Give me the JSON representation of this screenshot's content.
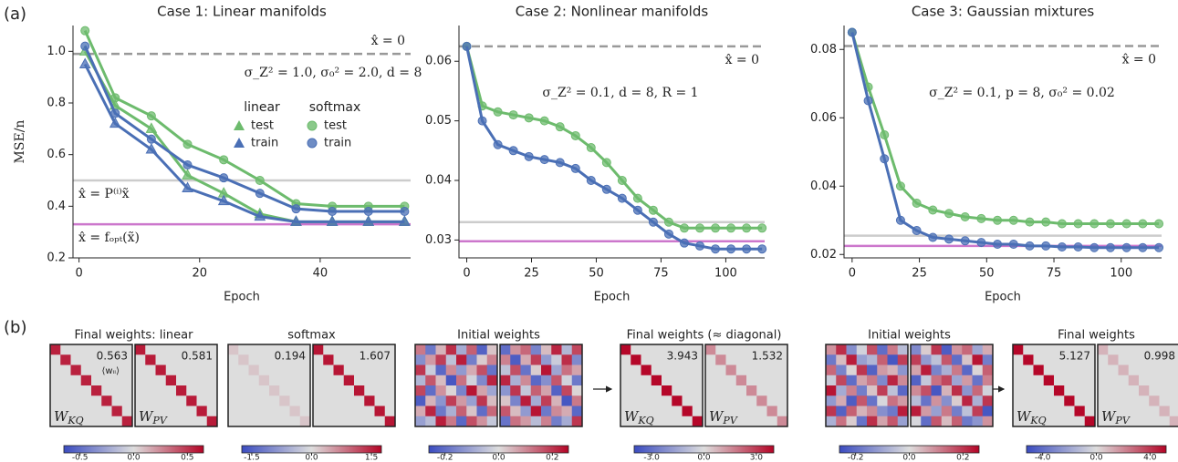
{
  "panel_labels": [
    "(a)",
    "(b)"
  ],
  "chart_data": [
    {
      "type": "line",
      "title": "Case 1: Linear manifolds",
      "ylabel": "MSE/n",
      "xlabel": "Epoch",
      "xlim": [
        -1,
        55
      ],
      "xticks": [
        0,
        20,
        40
      ],
      "ylim": [
        0.2,
        1.1
      ],
      "yticks": [
        0.2,
        0.4,
        0.6,
        0.8,
        {
          "value": 1.0,
          "label": "1.0"
        }
      ],
      "annotation": "σ_Z² = 1.0, σ₀² = 2.0, d = 8",
      "reference_lines": [
        {
          "label": "x̂ = 0",
          "value": 0.99,
          "color": "#999999",
          "style": "dashed"
        },
        {
          "label": "x̂ = P⁽ⁱ⁾x̃",
          "value": 0.5,
          "color": "#cccccc",
          "style": "solid"
        },
        {
          "label": "x̂ = fₒₚₜ(x̃)",
          "value": 0.33,
          "color": "#cc77cc",
          "style": "solid"
        }
      ],
      "x": [
        1,
        6,
        12,
        18,
        24,
        30,
        36,
        42,
        48,
        54
      ],
      "series": [
        {
          "group": "linear",
          "name": "test",
          "color": "#6dbb6d",
          "marker": "triangle",
          "values": [
            1.0,
            0.79,
            0.7,
            0.52,
            0.45,
            0.37,
            0.34,
            0.34,
            0.34,
            0.34
          ]
        },
        {
          "group": "linear",
          "name": "train",
          "color": "#4a6fb5",
          "marker": "triangle",
          "values": [
            0.95,
            0.72,
            0.62,
            0.47,
            0.42,
            0.36,
            0.34,
            0.34,
            0.34,
            0.34
          ]
        },
        {
          "group": "softmax",
          "name": "test",
          "color": "#6dbb6d",
          "marker": "circle",
          "values": [
            1.08,
            0.82,
            0.75,
            0.64,
            0.58,
            0.5,
            0.41,
            0.4,
            0.4,
            0.4
          ]
        },
        {
          "group": "softmax",
          "name": "train",
          "color": "#4a6fb5",
          "marker": "circle",
          "values": [
            1.02,
            0.76,
            0.66,
            0.56,
            0.51,
            0.45,
            0.39,
            0.38,
            0.38,
            0.38
          ]
        }
      ]
    },
    {
      "type": "line",
      "title": "Case 2: Nonlinear manifolds",
      "xlabel": "Epoch",
      "xlim": [
        -3,
        115
      ],
      "xticks": [
        0,
        25,
        50,
        75,
        100
      ],
      "ylim": [
        0.027,
        0.066
      ],
      "yticks": [
        0.03,
        0.04,
        0.05,
        0.06
      ],
      "annotation": "σ_Z² = 0.1, d = 8, R = 1",
      "reference_lines": [
        {
          "label": "x̂ = 0",
          "value": 0.0625,
          "color": "#999999",
          "style": "dashed"
        },
        {
          "value": 0.033,
          "color": "#cccccc",
          "style": "solid"
        },
        {
          "value": 0.0298,
          "color": "#cc77cc",
          "style": "solid"
        }
      ],
      "x": [
        0,
        6,
        12,
        18,
        24,
        30,
        36,
        42,
        48,
        54,
        60,
        66,
        72,
        78,
        84,
        90,
        96,
        102,
        108,
        114
      ],
      "series": [
        {
          "color": "#6dbb6d",
          "marker": "circle",
          "values": [
            0.0625,
            0.0525,
            0.0515,
            0.051,
            0.0505,
            0.05,
            0.049,
            0.0475,
            0.0455,
            0.043,
            0.04,
            0.037,
            0.035,
            0.033,
            0.032,
            0.032,
            0.032,
            0.032,
            0.032,
            0.032
          ]
        },
        {
          "color": "#4a6fb5",
          "marker": "circle",
          "values": [
            0.0625,
            0.05,
            0.046,
            0.045,
            0.044,
            0.0435,
            0.043,
            0.042,
            0.04,
            0.0385,
            0.037,
            0.035,
            0.033,
            0.031,
            0.0295,
            0.029,
            0.0285,
            0.0285,
            0.0285,
            0.0285
          ]
        }
      ]
    },
    {
      "type": "line",
      "title": "Case 3: Gaussian mixtures",
      "xlabel": "Epoch",
      "xlim": [
        -3,
        115
      ],
      "xticks": [
        0,
        25,
        50,
        75,
        100
      ],
      "ylim": [
        0.019,
        0.087
      ],
      "yticks": [
        0.02,
        0.04,
        0.06,
        0.08
      ],
      "annotation": "σ_Z² = 0.1, p = 8, σ₀² = 0.02",
      "reference_lines": [
        {
          "label": "x̂ = 0",
          "value": 0.081,
          "color": "#999999",
          "style": "dashed"
        },
        {
          "value": 0.0255,
          "color": "#cccccc",
          "style": "solid"
        },
        {
          "value": 0.0225,
          "color": "#cc77cc",
          "style": "solid"
        }
      ],
      "x": [
        0,
        6,
        12,
        18,
        24,
        30,
        36,
        42,
        48,
        54,
        60,
        66,
        72,
        78,
        84,
        90,
        96,
        102,
        108,
        114
      ],
      "series": [
        {
          "color": "#6dbb6d",
          "marker": "circle",
          "values": [
            0.085,
            0.069,
            0.055,
            0.04,
            0.035,
            0.033,
            0.032,
            0.031,
            0.0305,
            0.03,
            0.03,
            0.0295,
            0.0295,
            0.029,
            0.029,
            0.029,
            0.029,
            0.029,
            0.029,
            0.029
          ]
        },
        {
          "color": "#4a6fb5",
          "marker": "circle",
          "values": [
            0.085,
            0.065,
            0.048,
            0.03,
            0.027,
            0.025,
            0.0245,
            0.024,
            0.0235,
            0.023,
            0.023,
            0.0225,
            0.0225,
            0.0222,
            0.0222,
            0.022,
            0.022,
            0.022,
            0.022,
            0.022
          ]
        }
      ]
    }
  ],
  "weights": [
    {
      "title": "Final weights: linear",
      "colorbar": {
        "lim": [
          -0.65,
          0.65
        ],
        "ticks": [
          -0.5,
          {
            "value": 0,
            "label": "0.0"
          },
          0.5
        ]
      },
      "maps": [
        {
          "value": 0.563,
          "annotation": "⟨wᵢᵢ⟩",
          "label": "W",
          "sub": "KQ"
        },
        {
          "value": 0.581,
          "label": "W",
          "sub": "PV"
        }
      ]
    },
    {
      "title": "softmax",
      "colorbar": {
        "lim": [
          -1.75,
          1.75
        ],
        "ticks": [
          -1.5,
          {
            "value": 0,
            "label": "0.0"
          },
          1.5
        ]
      },
      "maps": [
        {
          "value": 0.194
        },
        {
          "value": 1.607
        }
      ]
    },
    {
      "title": "Initial weights",
      "colorbar": {
        "lim": [
          -0.26,
          0.26
        ],
        "ticks": [
          -0.2,
          {
            "value": 0,
            "label": "0.0"
          },
          0.2
        ]
      },
      "maps": [
        {
          "matrix": [
            [
              0.12,
              -0.18,
              0.05,
              0.21,
              -0.09,
              0.15,
              -0.22,
              0.03
            ],
            [
              -0.14,
              0.08,
              0.19,
              -0.05,
              0.23,
              -0.17,
              0.02,
              0.11
            ],
            [
              0.2,
              -0.03,
              -0.21,
              0.1,
              -0.12,
              0.06,
              0.17,
              -0.19
            ],
            [
              -0.07,
              0.16,
              0.04,
              -0.24,
              0.13,
              -0.02,
              -0.15,
              0.22
            ],
            [
              0.18,
              -0.2,
              0.09,
              0.01,
              -0.16,
              0.24,
              0.07,
              -0.1
            ],
            [
              -0.23,
              0.05,
              -0.13,
              0.19,
              0.08,
              -0.11,
              0.2,
              0.04
            ],
            [
              0.06,
              0.22,
              -0.18,
              -0.08,
              0.15,
              0.03,
              -0.2,
              0.14
            ],
            [
              -0.11,
              -0.06,
              0.23,
              0.12,
              -0.21,
              0.17,
              0.09,
              -0.04
            ]
          ]
        },
        {
          "matrix": [
            [
              -0.2,
              0.09,
              0.14,
              -0.16,
              0.04,
              0.22,
              -0.07,
              0.18
            ],
            [
              0.11,
              -0.23,
              0.06,
              0.19,
              -0.12,
              -0.03,
              0.21,
              -0.15
            ],
            [
              -0.05,
              0.17,
              -0.19,
              0.02,
              0.24,
              -0.1,
              0.13,
              0.07
            ],
            [
              0.22,
              -0.08,
              0.1,
              -0.21,
              -0.14,
              0.16,
              -0.02,
              -0.18
            ],
            [
              -0.13,
              0.2,
              -0.04,
              0.15,
              0.07,
              -0.22,
              0.18,
              0.01
            ],
            [
              0.03,
              -0.16,
              0.23,
              -0.09,
              0.19,
              0.05,
              -0.24,
              0.12
            ],
            [
              0.16,
              0.04,
              -0.12,
              0.24,
              -0.18,
              0.1,
              0.06,
              -0.21
            ],
            [
              -0.19,
              0.13,
              0.08,
              -0.06,
              0.11,
              -0.17,
              -0.09,
              0.2
            ]
          ]
        }
      ]
    },
    {
      "title": "Final weights (≈ diagonal)",
      "colorbar": {
        "lim": [
          -4.0,
          4.0
        ],
        "ticks": [
          {
            "value": -3,
            "label": "-3.0"
          },
          {
            "value": 0,
            "label": "0.0"
          },
          {
            "value": 3,
            "label": "3.0"
          }
        ]
      },
      "maps": [
        {
          "value": 3.943,
          "label": "W",
          "sub": "KQ"
        },
        {
          "value": 1.532,
          "label": "W",
          "sub": "PV"
        }
      ]
    },
    {
      "title": "Initial weights",
      "colorbar": {
        "lim": [
          -0.26,
          0.26
        ],
        "ticks": [
          -0.2,
          {
            "value": 0,
            "label": "0.0"
          },
          0.2
        ]
      },
      "maps": [
        {
          "matrix": [
            [
              0.09,
              0.21,
              -0.14,
              -0.02,
              0.17,
              -0.2,
              0.12,
              -0.06
            ],
            [
              -0.18,
              0.04,
              0.23,
              -0.11,
              -0.07,
              0.15,
              -0.24,
              0.19
            ],
            [
              0.14,
              -0.16,
              0.01,
              0.2,
              -0.22,
              0.08,
              0.05,
              -0.13
            ],
            [
              -0.03,
              0.18,
              -0.2,
              0.07,
              0.12,
              -0.15,
              0.22,
              0.1
            ],
            [
              0.24,
              -0.09,
              0.11,
              -0.17,
              0.03,
              0.19,
              -0.05,
              -0.21
            ],
            [
              -0.12,
              0.06,
              -0.23,
              0.16,
              -0.19,
              -0.01,
              0.13,
              0.08
            ],
            [
              0.2,
              -0.22,
              0.15,
              0.05,
              0.1,
              -0.14,
              -0.18,
              0.23
            ],
            [
              -0.08,
              0.13,
              0.02,
              -0.19,
              0.21,
              0.07,
              0.16,
              -0.11
            ]
          ]
        },
        {
          "matrix": [
            [
              -0.15,
              0.02,
              0.2,
              -0.23,
              0.09,
              0.14,
              -0.1,
              0.06
            ],
            [
              0.19,
              -0.12,
              -0.05,
              0.16,
              -0.2,
              0.03,
              0.24,
              -0.17
            ],
            [
              0.07,
              0.23,
              -0.16,
              -0.08,
              0.12,
              -0.21,
              0.01,
              0.15
            ],
            [
              -0.22,
              -0.04,
              0.13,
              0.18,
              -0.1,
              0.08,
              -0.19,
              0.11
            ],
            [
              0.1,
              0.17,
              -0.24,
              0.05,
              0.21,
              -0.13,
              0.14,
              -0.02
            ],
            [
              -0.06,
              -0.19,
              0.09,
              -0.14,
              0.02,
              0.22,
              -0.08,
              0.2
            ],
            [
              0.23,
              0.08,
              -0.11,
              0.12,
              -0.17,
              -0.05,
              0.19,
              -0.24
            ],
            [
              -0.01,
              -0.2,
              0.16,
              0.04,
              0.15,
              -0.18,
              -0.13,
              0.09
            ]
          ]
        }
      ]
    },
    {
      "title": "Final weights",
      "colorbar": {
        "lim": [
          -5.2,
          5.2
        ],
        "ticks": [
          {
            "value": -4,
            "label": "-4.0"
          },
          {
            "value": 0,
            "label": "0.0"
          },
          {
            "value": 4,
            "label": "4.0"
          }
        ]
      },
      "maps": [
        {
          "value": 5.127,
          "label": "W",
          "sub": "KQ"
        },
        {
          "value": 0.998,
          "label": "W",
          "sub": "PV"
        }
      ]
    }
  ]
}
